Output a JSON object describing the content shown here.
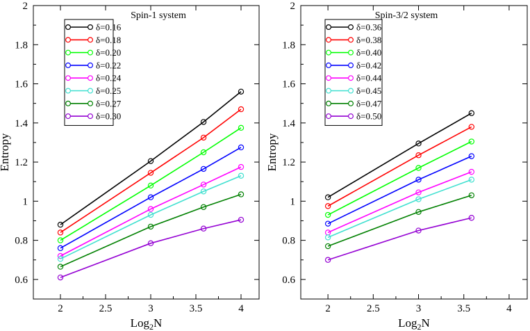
{
  "chart_data": [
    {
      "type": "line",
      "title": "Spin-1 system",
      "xlabel": "Log2N",
      "xlabel_main": "Log",
      "xlabel_sub": "2",
      "xlabel_tail": "N",
      "ylabel": "Entropy",
      "xlim": [
        1.7,
        4.2
      ],
      "ylim": [
        0.5,
        2.0
      ],
      "x_ticks": [
        2,
        2.5,
        3,
        3.5,
        4
      ],
      "x_tick_labels": [
        "2",
        "2.5",
        "3",
        "3.5",
        "4"
      ],
      "y_ticks": [
        0.6,
        0.8,
        1.0,
        1.2,
        1.4,
        1.6,
        1.8,
        2.0
      ],
      "y_tick_labels": [
        "0.6",
        "0.8",
        "1",
        "1.2",
        "1.4",
        "1.6",
        "1.8",
        "2"
      ],
      "legend_position": "top-left",
      "x": [
        2,
        3,
        3.585,
        4
      ],
      "series": [
        {
          "name": "δ=0.16",
          "color": "#000000",
          "values": [
            0.88,
            1.205,
            1.405,
            1.56
          ]
        },
        {
          "name": "δ=0.18",
          "color": "#ff0000",
          "values": [
            0.84,
            1.145,
            1.325,
            1.47
          ]
        },
        {
          "name": "δ=0.20",
          "color": "#00ff00",
          "values": [
            0.8,
            1.08,
            1.25,
            1.375
          ]
        },
        {
          "name": "δ=0.22",
          "color": "#0000ff",
          "values": [
            0.76,
            1.02,
            1.165,
            1.275
          ]
        },
        {
          "name": "δ=0.24",
          "color": "#ff00ff",
          "values": [
            0.72,
            0.96,
            1.085,
            1.175
          ]
        },
        {
          "name": "δ=0.25",
          "color": "#40e0d0",
          "values": [
            0.705,
            0.93,
            1.05,
            1.13
          ]
        },
        {
          "name": "δ=0.27",
          "color": "#008000",
          "values": [
            0.665,
            0.87,
            0.97,
            1.035
          ]
        },
        {
          "name": "δ=0.30",
          "color": "#9400d3",
          "values": [
            0.61,
            0.785,
            0.86,
            0.905
          ]
        }
      ]
    },
    {
      "type": "line",
      "title": "Spin-3/2 system",
      "xlabel": "Log2N",
      "xlabel_main": "Log",
      "xlabel_sub": "2",
      "xlabel_tail": "N",
      "ylabel": "Entropy",
      "xlim": [
        1.7,
        4.2
      ],
      "ylim": [
        0.5,
        2.0
      ],
      "x_ticks": [
        2,
        2.5,
        3,
        3.5,
        4
      ],
      "x_tick_labels": [
        "2",
        "2.5",
        "3",
        "3.5",
        "4"
      ],
      "y_ticks": [
        0.6,
        0.8,
        1.0,
        1.2,
        1.4,
        1.6,
        1.8,
        2.0
      ],
      "y_tick_labels": [
        "0.6",
        "0.8",
        "1",
        "1.2",
        "1.4",
        "1.6",
        "1.8",
        "2"
      ],
      "legend_position": "top-left",
      "x": [
        2,
        3,
        3.585
      ],
      "series": [
        {
          "name": "δ=0.36",
          "color": "#000000",
          "values": [
            1.02,
            1.295,
            1.45
          ]
        },
        {
          "name": "δ=0.38",
          "color": "#ff0000",
          "values": [
            0.975,
            1.235,
            1.38
          ]
        },
        {
          "name": "δ=0.40",
          "color": "#00ff00",
          "values": [
            0.93,
            1.17,
            1.305
          ]
        },
        {
          "name": "δ=0.42",
          "color": "#0000ff",
          "values": [
            0.885,
            1.11,
            1.23
          ]
        },
        {
          "name": "δ=0.44",
          "color": "#ff00ff",
          "values": [
            0.84,
            1.045,
            1.15
          ]
        },
        {
          "name": "δ=0.45",
          "color": "#40e0d0",
          "values": [
            0.815,
            1.01,
            1.11
          ]
        },
        {
          "name": "δ=0.47",
          "color": "#008000",
          "values": [
            0.77,
            0.945,
            1.03
          ]
        },
        {
          "name": "δ=0.50",
          "color": "#9400d3",
          "values": [
            0.7,
            0.85,
            0.915
          ]
        }
      ]
    }
  ]
}
